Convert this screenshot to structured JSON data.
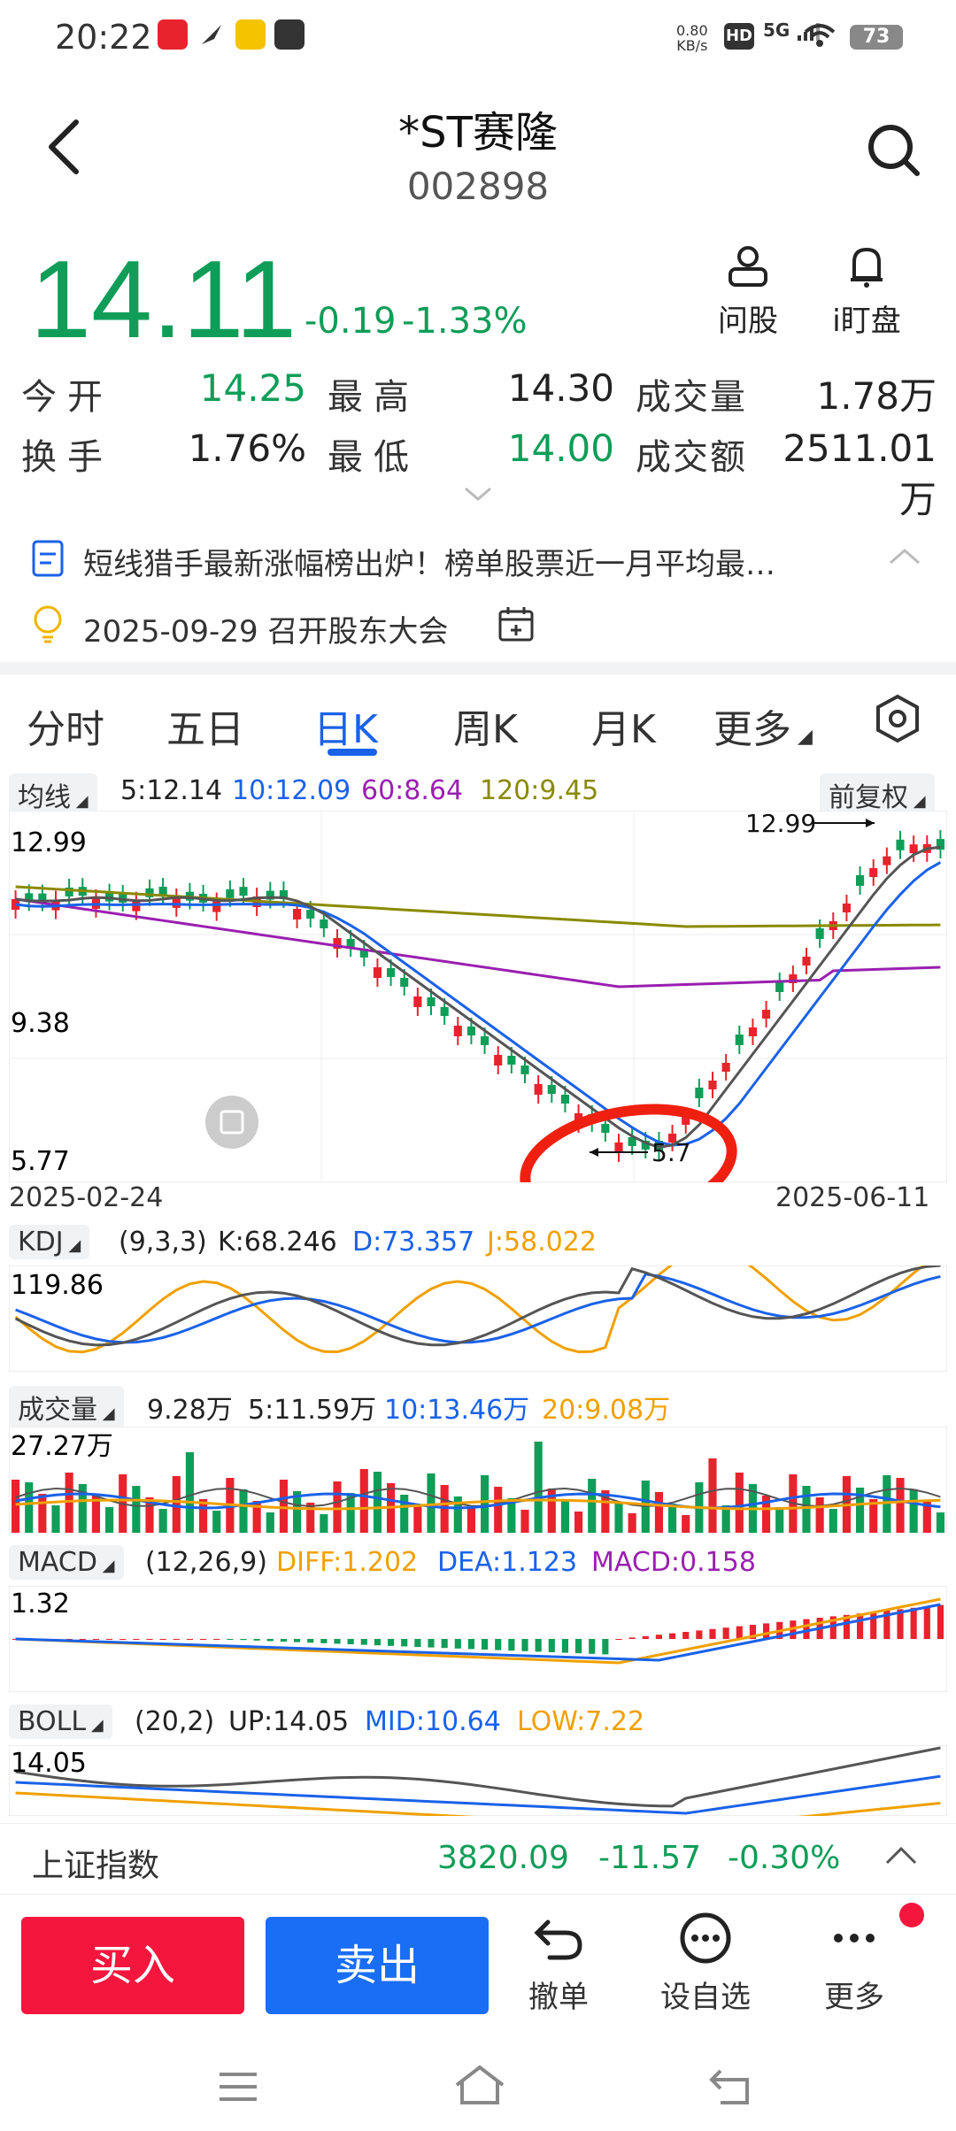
{
  "status_bar": {
    "time": "20:22",
    "net_rate_value": "0.80",
    "net_rate_unit": "KB/s",
    "hd": "HD",
    "signal": "5G",
    "battery": "73"
  },
  "header": {
    "title": "*ST赛隆",
    "code": "002898"
  },
  "quote": {
    "price": "14.11",
    "change": "-0.19",
    "change_pct": "-1.33%",
    "ask_label": "问股",
    "watch_label": "i盯盘"
  },
  "stats": [
    {
      "label": "今开",
      "value": "14.25",
      "color": "#0f9d58"
    },
    {
      "label": "最高",
      "value": "14.30",
      "color": "#222222"
    },
    {
      "label": "成交量",
      "value": "1.78万",
      "color": "#222222"
    },
    {
      "label": "换手",
      "value": "1.76%",
      "color": "#222222"
    },
    {
      "label": "最低",
      "value": "14.00",
      "color": "#0f9d58"
    },
    {
      "label": "成交额",
      "value": "2511.01万",
      "color": "#222222"
    }
  ],
  "news": {
    "headline": "短线猎手最新涨幅榜出炉！榜单股票近一月平均最…",
    "event": "2025-09-29 召开股东大会"
  },
  "tabs": [
    "分时",
    "五日",
    "日K",
    "周K",
    "月K",
    "更多"
  ],
  "active_tab": "日K",
  "ma": {
    "label": "均线",
    "ma5": "5:12.14",
    "ma10": "10:12.09",
    "ma60": "60:8.64",
    "ma120": "120:9.45",
    "adjust": "前复权"
  },
  "kdj": {
    "label": "KDJ",
    "params": "(9,3,3)",
    "k": "K:68.246",
    "d": "D:73.357",
    "j": "J:58.022",
    "top": "119.86"
  },
  "volume": {
    "label": "成交量",
    "total": "9.28万",
    "ma5": "5:11.59万",
    "ma10": "10:13.46万",
    "ma20": "20:9.08万",
    "top": "27.27万"
  },
  "macd": {
    "label": "MACD",
    "params": "(12,26,9)",
    "diff": "DIFF:1.202",
    "dea": "DEA:1.123",
    "macd": "MACD:0.158",
    "top": "1.32"
  },
  "boll": {
    "label": "BOLL",
    "params": "(20,2)",
    "up": "UP:14.05",
    "mid": "MID:10.64",
    "low": "LOW:7.22",
    "top": "14.05"
  },
  "chart_data": {
    "type": "candlestick",
    "y_ticks": [
      "12.99",
      "9.38",
      "5.77"
    ],
    "ylim": [
      5.77,
      12.99
    ],
    "x_start": "2025-02-24",
    "x_end": "2025-06-11",
    "annotations": {
      "max": "12.99",
      "min": "5.7"
    }
  },
  "index": {
    "name": "上证指数",
    "value": "3820.09",
    "change": "-11.57",
    "pct": "-0.30%"
  },
  "bottom": {
    "buy": "买入",
    "sell": "卖出",
    "cancel": "撤单",
    "watchlist": "设自选",
    "more": "更多"
  },
  "colors": {
    "up": "#e8232d",
    "down": "#0f9d58",
    "accent": "#1a62e8"
  }
}
